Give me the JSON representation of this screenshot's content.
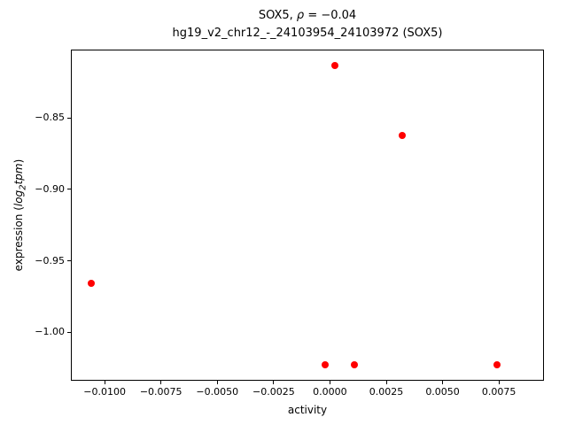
{
  "title": {
    "prefix": "SOX5, ",
    "rho": "ρ",
    "suffix": " = −0.04",
    "line2": "hg19_v2_chr12_-_24103954_24103972 (SOX5)"
  },
  "axes": {
    "xlabel": "activity",
    "ylabel": {
      "prefix": "expression (",
      "log": "log",
      "sub": "2",
      "unit": "tpm",
      "suffix": ")"
    }
  },
  "chart_data": {
    "type": "scatter",
    "title": "SOX5, ρ = −0.04",
    "subtitle": "hg19_v2_chr12_-_24103954_24103972 (SOX5)",
    "xlabel": "activity",
    "ylabel": "expression (log2 tpm)",
    "marker_color": "#ff0000",
    "grid": false,
    "legend": false,
    "xlim": [
      -0.0115,
      0.0095
    ],
    "ylim": [
      -1.034,
      -0.802
    ],
    "x": [
      -0.0106,
      -0.0002,
      0.0002,
      0.0011,
      0.0032,
      0.0074
    ],
    "y": [
      -0.966,
      -1.023,
      -0.813,
      -1.023,
      -0.862,
      -1.023
    ],
    "xticks": [
      {
        "value": -0.01,
        "label": "−0.0100"
      },
      {
        "value": -0.0075,
        "label": "−0.0075"
      },
      {
        "value": -0.005,
        "label": "−0.0050"
      },
      {
        "value": -0.0025,
        "label": "−0.0025"
      },
      {
        "value": 0.0,
        "label": "0.0000"
      },
      {
        "value": 0.0025,
        "label": "0.0025"
      },
      {
        "value": 0.005,
        "label": "0.0050"
      },
      {
        "value": 0.0075,
        "label": "0.0075"
      }
    ],
    "yticks": [
      {
        "value": -0.85,
        "label": "−0.85"
      },
      {
        "value": -0.9,
        "label": "−0.90"
      },
      {
        "value": -0.95,
        "label": "−0.95"
      },
      {
        "value": -1.0,
        "label": "−1.00"
      }
    ]
  }
}
